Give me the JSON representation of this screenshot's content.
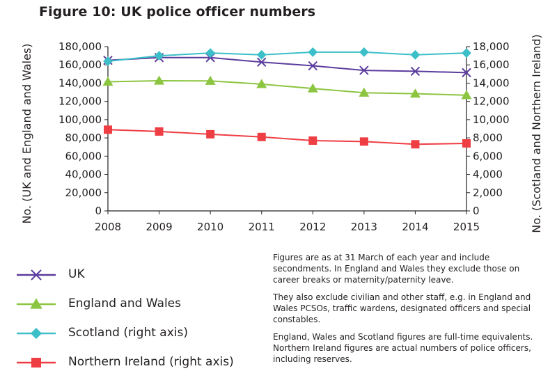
{
  "title": "Figure 10: UK police officer numbers",
  "chart_data": {
    "type": "line",
    "x": [
      "2008",
      "2009",
      "2010",
      "2011",
      "2012",
      "2013",
      "2014",
      "2015"
    ],
    "ylabel_left": "No. (UK and England and Wales)",
    "ylabel_right": "No. (Scotland and Northern Ireland)",
    "ylim_left": [
      0,
      180000
    ],
    "ylim_right": [
      0,
      18000
    ],
    "left_ticks": [
      "0",
      "20,000",
      "40,000",
      "60,000",
      "80,000",
      "100,000",
      "120,000",
      "140,000",
      "160,000",
      "180,000"
    ],
    "right_ticks": [
      "0",
      "2,000",
      "4,000",
      "6,000",
      "8,000",
      "10,000",
      "12,000",
      "14,000",
      "16,000",
      "18,000"
    ],
    "grid": false,
    "legend_position": "bottom-left",
    "series": [
      {
        "name": "UK",
        "axis": "left",
        "marker": "x",
        "color": "#5b3c9e",
        "values": [
          165000,
          168000,
          168000,
          163000,
          159000,
          154000,
          153000,
          151500
        ]
      },
      {
        "name": "England and Wales",
        "axis": "left",
        "marker": "triangle",
        "color": "#8cc540",
        "values": [
          141500,
          142600,
          142400,
          138900,
          134100,
          129500,
          128400,
          126800
        ]
      },
      {
        "name": "Scotland (right axis)",
        "axis": "right",
        "marker": "diamond",
        "color": "#3cbfc8",
        "values": [
          16400,
          17000,
          17300,
          17100,
          17400,
          17400,
          17100,
          17300
        ]
      },
      {
        "name": "Northern Ireland (right axis)",
        "axis": "right",
        "marker": "square",
        "color": "#ee3d43",
        "values": [
          8900,
          8700,
          8400,
          8100,
          7700,
          7600,
          7300,
          7400
        ]
      }
    ]
  },
  "notes": [
    "Figures are as at 31 March of each year and include secondments. In England and Wales they exclude those on career breaks or maternity/paternity leave.",
    "They also exclude civilian and other staff, e.g. in England and Wales PCSOs, traffic wardens, designated officers and special constables.",
    "England, Wales and Scotland figures are full-time equivalents. Northern Ireland figures are actual numbers of police officers, including reserves."
  ]
}
